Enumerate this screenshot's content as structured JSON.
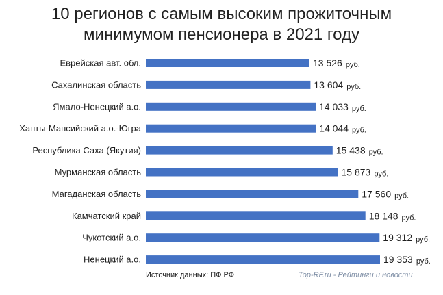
{
  "title": {
    "line1": "10 регионов с самым высоким прожиточным",
    "line2": "минимумом  пенсионера в 2021 году"
  },
  "colors": {
    "bar": "#4472c4"
  },
  "source": "Источник данных: ПФ РФ",
  "brand": "Top-RF.ru - Рейтинги и новости",
  "chart_data": {
    "type": "bar",
    "orientation": "horizontal",
    "title": "10 регионов с самым высоким прожиточным минимумом  пенсионера в 2021 году",
    "unit": "руб.",
    "categories": [
      "Еврейская авт. обл.",
      "Сахалинская  область",
      "Ямало-Ненецкий  а.о.",
      "Ханты-Мансийский  а.о.-Югра",
      "Республика  Саха  (Якутия)",
      "Мурманская  область",
      "Магаданская  область",
      "Камчатский  край",
      "Чукотский  а.о.",
      "Ненецкий  а.о."
    ],
    "values": [
      13526,
      13604,
      14033,
      14044,
      15438,
      15873,
      17560,
      18148,
      19312,
      19353
    ],
    "value_labels": [
      "13 526",
      "13 604",
      "14 033",
      "14 044",
      "15 438",
      "15 873",
      "17 560",
      "18 148",
      "19 312",
      "19 353"
    ],
    "xlim": [
      0,
      19353
    ],
    "grid": false,
    "legend": "none"
  }
}
